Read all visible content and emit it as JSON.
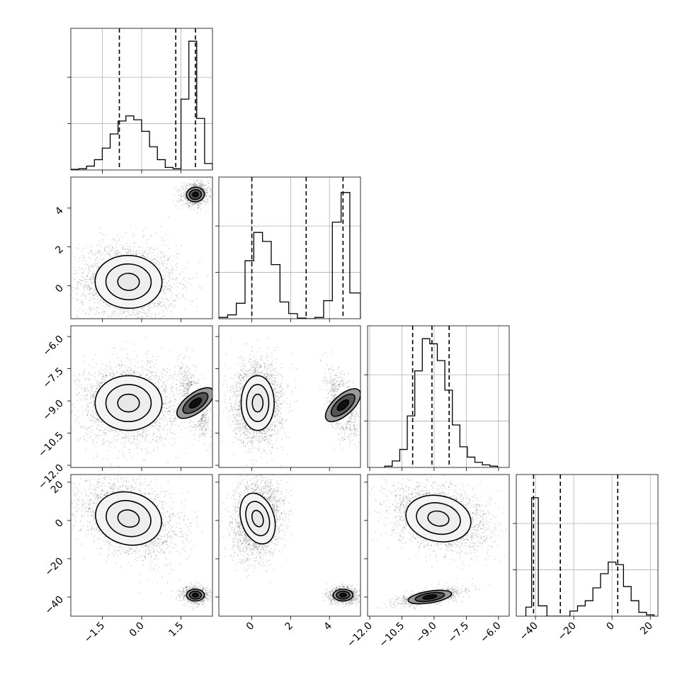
{
  "chart_data": {
    "type": "corner",
    "variables": [
      {
        "ticks": [
          -1.5,
          0.0,
          1.5
        ],
        "tick_labels": [
          "−1.5",
          "0.0",
          "1.5"
        ],
        "range": [
          -2.7,
          2.7
        ]
      },
      {
        "ticks": [
          0,
          2,
          4
        ],
        "tick_labels": [
          "0",
          "2",
          "4"
        ],
        "range": [
          -1.7,
          5.6
        ]
      },
      {
        "ticks": [
          -12.0,
          -10.5,
          -9.0,
          -7.5,
          -6.0
        ],
        "tick_labels": [
          "−12.0",
          "−10.5",
          "−9.0",
          "−7.5",
          "−6.0"
        ],
        "range": [
          -12.1,
          -5.5
        ]
      },
      {
        "ticks": [
          -40,
          -20,
          0,
          20
        ],
        "tick_labels": [
          "−40",
          "−20",
          "0",
          "20"
        ],
        "range": [
          -50,
          24
        ]
      }
    ],
    "marginals": [
      {
        "quantiles": [
          -0.85,
          1.3,
          2.05
        ],
        "bins": [
          [
            -2.7,
            -2.4,
            0.005
          ],
          [
            -2.4,
            -2.1,
            0.01
          ],
          [
            -2.1,
            -1.8,
            0.03
          ],
          [
            -1.8,
            -1.5,
            0.08
          ],
          [
            -1.5,
            -1.2,
            0.17
          ],
          [
            -1.2,
            -0.9,
            0.28
          ],
          [
            -0.9,
            -0.6,
            0.38
          ],
          [
            -0.6,
            -0.3,
            0.42
          ],
          [
            -0.3,
            0.0,
            0.39
          ],
          [
            0.0,
            0.3,
            0.3
          ],
          [
            0.3,
            0.6,
            0.18
          ],
          [
            0.6,
            0.9,
            0.08
          ],
          [
            0.9,
            1.2,
            0.02
          ],
          [
            1.2,
            1.5,
            0.01
          ],
          [
            1.5,
            1.8,
            0.55
          ],
          [
            1.8,
            2.1,
            1.0
          ],
          [
            2.1,
            2.4,
            0.4
          ],
          [
            2.4,
            2.7,
            0.05
          ]
        ]
      },
      {
        "quantiles": [
          0.0,
          2.8,
          4.7
        ],
        "bins": [
          [
            -1.7,
            -1.25,
            0.01
          ],
          [
            -1.25,
            -0.8,
            0.03
          ],
          [
            -0.8,
            -0.35,
            0.12
          ],
          [
            -0.35,
            0.1,
            0.45
          ],
          [
            0.1,
            0.55,
            0.67
          ],
          [
            0.55,
            1.0,
            0.6
          ],
          [
            1.0,
            1.45,
            0.42
          ],
          [
            1.45,
            1.9,
            0.13
          ],
          [
            1.9,
            2.35,
            0.04
          ],
          [
            2.35,
            2.8,
            0.005
          ],
          [
            2.8,
            3.25,
            0.0
          ],
          [
            3.25,
            3.7,
            0.01
          ],
          [
            3.7,
            4.15,
            0.14
          ],
          [
            4.15,
            4.6,
            0.75
          ],
          [
            4.6,
            5.05,
            0.98
          ],
          [
            5.05,
            5.6,
            0.2
          ]
        ]
      },
      {
        "quantiles": [
          -10.0,
          -9.1,
          -8.3
        ],
        "bins": [
          [
            -11.3,
            -10.95,
            0.01
          ],
          [
            -10.95,
            -10.6,
            0.05
          ],
          [
            -10.6,
            -10.25,
            0.14
          ],
          [
            -10.25,
            -9.9,
            0.4
          ],
          [
            -9.9,
            -9.55,
            0.75
          ],
          [
            -9.55,
            -9.2,
            1.0
          ],
          [
            -9.2,
            -8.85,
            0.96
          ],
          [
            -8.85,
            -8.5,
            0.83
          ],
          [
            -8.5,
            -8.15,
            0.6
          ],
          [
            -8.15,
            -7.8,
            0.33
          ],
          [
            -7.8,
            -7.45,
            0.16
          ],
          [
            -7.45,
            -7.1,
            0.08
          ],
          [
            -7.1,
            -6.75,
            0.04
          ],
          [
            -6.75,
            -6.4,
            0.02
          ],
          [
            -6.4,
            -6.05,
            0.01
          ]
        ]
      },
      {
        "quantiles": [
          -41,
          -27,
          3
        ],
        "bins": [
          [
            -45,
            -42,
            0.07
          ],
          [
            -42,
            -38.5,
            0.92
          ],
          [
            -38.5,
            -34,
            0.08
          ],
          [
            -34,
            -30,
            0.0
          ],
          [
            -30,
            -26,
            0.0
          ],
          [
            -26,
            -22,
            0.0
          ],
          [
            -22,
            -18,
            0.04
          ],
          [
            -18,
            -14,
            0.08
          ],
          [
            -14,
            -10,
            0.12
          ],
          [
            -10,
            -6,
            0.22
          ],
          [
            -6,
            -2,
            0.33
          ],
          [
            -2,
            2,
            0.42
          ],
          [
            2,
            6,
            0.4
          ],
          [
            6,
            10,
            0.23
          ],
          [
            10,
            14,
            0.12
          ],
          [
            14,
            18,
            0.03
          ],
          [
            18,
            22,
            0.01
          ]
        ]
      }
    ],
    "joint": {
      "1_0": [
        {
          "center": [
            -0.5,
            0.2
          ],
          "sd": [
            0.75,
            0.8
          ],
          "rho": -0.05,
          "n": 2400
        },
        {
          "center": [
            2.05,
            4.7
          ],
          "sd": [
            0.2,
            0.22
          ],
          "rho": 0.1,
          "n": 900
        }
      ],
      "2_0": [
        {
          "center": [
            -0.5,
            -9.1
          ],
          "sd": [
            0.75,
            0.75
          ],
          "rho": 0.0,
          "n": 2400
        },
        {
          "center": [
            2.05,
            -9.1
          ],
          "sd": [
            0.22,
            0.6
          ],
          "rho": -0.6,
          "n": 900
        }
      ],
      "2_1": [
        {
          "center": [
            0.3,
            -9.1
          ],
          "sd": [
            0.5,
            0.75
          ],
          "rho": 0.0,
          "n": 2400
        },
        {
          "center": [
            4.7,
            -9.2
          ],
          "sd": [
            0.3,
            0.6
          ],
          "rho": -0.5,
          "n": 900
        }
      ],
      "3_0": [
        {
          "center": [
            -0.5,
            1
          ],
          "sd": [
            0.75,
            8
          ],
          "rho": -0.35,
          "n": 2400
        },
        {
          "center": [
            2.05,
            -39
          ],
          "sd": [
            0.2,
            1.8
          ],
          "rho": 0.0,
          "n": 900
        }
      ],
      "3_1": [
        {
          "center": [
            0.3,
            1
          ],
          "sd": [
            0.5,
            8
          ],
          "rho": 0.2,
          "n": 2400
        },
        {
          "center": [
            4.7,
            -39
          ],
          "sd": [
            0.3,
            1.8
          ],
          "rho": 0.0,
          "n": 900
        }
      ],
      "3_2": [
        {
          "center": [
            -8.8,
            1
          ],
          "sd": [
            0.9,
            7
          ],
          "rho": -0.3,
          "n": 2400
        },
        {
          "center": [
            -9.2,
            -40
          ],
          "sd": [
            0.6,
            1.8
          ],
          "rho": 0.6,
          "n": 900
        }
      ]
    },
    "grid": true
  }
}
